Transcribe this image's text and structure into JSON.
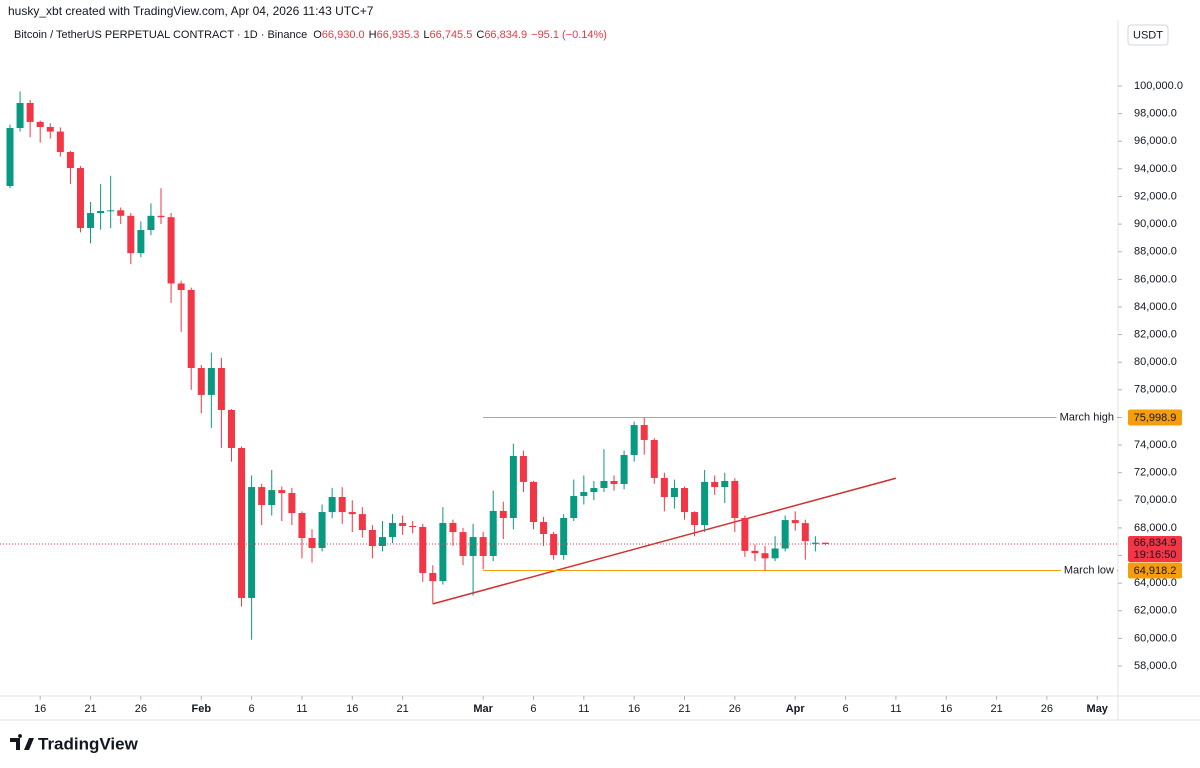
{
  "chart_data": {
    "type": "candlestick",
    "credit": "husky_xbt created with TradingView.com, Apr 04, 2026 11:43 UTC+7",
    "symbol": "Bitcoin / TetherUS PERPETUAL CONTRACT · 1D · Binance",
    "ohlc_legend": [
      {
        "key": "O",
        "value": "66,930.0"
      },
      {
        "key": "H",
        "value": "66,935.3"
      },
      {
        "key": "L",
        "value": "66,745.5"
      },
      {
        "key": "C",
        "value": "66,834.9"
      }
    ],
    "change": "−95.1 (−0.14%)",
    "currency": "USDT",
    "countdown": "19:16:50",
    "logo": "TradingView",
    "up_color": "#089981",
    "down_color": "#f23645",
    "dates": [
      "Jan 13",
      "Jan 14",
      "Jan 15",
      "Jan 16",
      "Jan 17",
      "Jan 18",
      "Jan 19",
      "Jan 20",
      "Jan 21",
      "Jan 22",
      "Jan 23",
      "Jan 24",
      "Jan 25",
      "Jan 26",
      "Jan 27",
      "Jan 28",
      "Jan 29",
      "Jan 30",
      "Jan 31",
      "Feb 1",
      "Feb 2",
      "Feb 3",
      "Feb 4",
      "Feb 5",
      "Feb 6",
      "Feb 7",
      "Feb 8",
      "Feb 9",
      "Feb 10",
      "Feb 11",
      "Feb 12",
      "Feb 13",
      "Feb 14",
      "Feb 15",
      "Feb 16",
      "Feb 17",
      "Feb 18",
      "Feb 19",
      "Feb 20",
      "Feb 21",
      "Feb 22",
      "Feb 23",
      "Feb 24",
      "Feb 25",
      "Feb 26",
      "Feb 27",
      "Feb 28",
      "Mar 1",
      "Mar 2",
      "Mar 3",
      "Mar 4",
      "Mar 5",
      "Mar 6",
      "Mar 7",
      "Mar 8",
      "Mar 9",
      "Mar 10",
      "Mar 11",
      "Mar 12",
      "Mar 13",
      "Mar 14",
      "Mar 15",
      "Mar 16",
      "Mar 17",
      "Mar 18",
      "Mar 19",
      "Mar 20",
      "Mar 21",
      "Mar 22",
      "Mar 23",
      "Mar 24",
      "Mar 25",
      "Mar 26",
      "Mar 27",
      "Mar 28",
      "Mar 29",
      "Mar 30",
      "Mar 31",
      "Apr 1",
      "Apr 2",
      "Apr 3",
      "Apr 4"
    ],
    "open": [
      92760,
      96960,
      98770,
      97400,
      97030,
      96700,
      95220,
      94060,
      89720,
      90800,
      90950,
      91000,
      90600,
      87900,
      89570,
      90600,
      90500,
      85700,
      85230,
      79580,
      77630,
      79580,
      76540,
      73790,
      62930,
      70960,
      69660,
      70740,
      70530,
      69080,
      67270,
      66550,
      69150,
      70240,
      69150,
      69000,
      67850,
      66690,
      67340,
      68360,
      68140,
      68070,
      64740,
      64150,
      68360,
      67700,
      65970,
      67340,
      65970,
      69230,
      68720,
      73210,
      71330,
      68430,
      67560,
      66040,
      68720,
      70310,
      70600,
      70890,
      71400,
      71180,
      73280,
      75450,
      74370,
      71620,
      70240,
      70890,
      69150,
      68210,
      71330,
      70960,
      71400,
      68720,
      66340,
      66170,
      65800,
      66510,
      68570,
      68350,
      66850,
      66930
    ],
    "high": [
      97200,
      99600,
      99000,
      97500,
      97300,
      97000,
      95300,
      94200,
      91600,
      92900,
      93500,
      91200,
      90800,
      90200,
      91500,
      92600,
      90800,
      85900,
      85400,
      79800,
      80700,
      80300,
      76600,
      73900,
      71800,
      71200,
      72200,
      71000,
      70900,
      69200,
      67900,
      69700,
      70900,
      70950,
      70000,
      69500,
      68200,
      68500,
      69000,
      68900,
      68500,
      68300,
      65300,
      69500,
      68600,
      68000,
      68300,
      67700,
      70700,
      69900,
      74100,
      73600,
      71400,
      68800,
      67700,
      69000,
      71500,
      71800,
      71400,
      73700,
      71800,
      73600,
      75700,
      76000,
      74500,
      72000,
      71500,
      71000,
      69200,
      72200,
      71800,
      72000,
      71600,
      68900,
      66800,
      66700,
      67400,
      68900,
      69200,
      68600,
      67400,
      66935.3
    ],
    "low": [
      92600,
      96700,
      96300,
      95900,
      96200,
      94900,
      92900,
      89400,
      88600,
      89600,
      89700,
      90000,
      87100,
      87600,
      89200,
      90000,
      84300,
      82200,
      78000,
      76300,
      75240,
      73800,
      72800,
      62300,
      59900,
      68200,
      68900,
      68500,
      68200,
      65800,
      65500,
      66300,
      68700,
      68300,
      67700,
      67300,
      65800,
      66300,
      66900,
      67500,
      67600,
      64100,
      62500,
      63900,
      66700,
      65300,
      63100,
      65000,
      65600,
      67200,
      67900,
      70600,
      67900,
      66700,
      65700,
      65700,
      68500,
      69700,
      70000,
      70600,
      70700,
      70800,
      72800,
      73300,
      71200,
      69200,
      69400,
      68600,
      67400,
      67700,
      70400,
      69800,
      67700,
      65900,
      65600,
      64900,
      65600,
      66300,
      67800,
      65700,
      66300,
      66745.5
    ],
    "close": [
      96960,
      98770,
      97400,
      97030,
      96700,
      95220,
      94060,
      89720,
      90800,
      90950,
      91000,
      90600,
      87900,
      89570,
      90600,
      90500,
      85700,
      85230,
      79580,
      77630,
      79580,
      76540,
      73790,
      62930,
      70960,
      69660,
      70740,
      70530,
      69080,
      67270,
      66550,
      69150,
      70240,
      69150,
      69000,
      67850,
      66690,
      67340,
      68360,
      68140,
      68070,
      64740,
      64150,
      68360,
      67700,
      65970,
      67340,
      65970,
      69230,
      68720,
      73210,
      71330,
      68430,
      67560,
      66040,
      68720,
      70310,
      70600,
      70890,
      71400,
      71180,
      73280,
      75450,
      74370,
      71620,
      70240,
      70890,
      69150,
      68210,
      71330,
      70960,
      71400,
      68720,
      66340,
      66170,
      65800,
      66510,
      68570,
      68350,
      67050,
      66930,
      66834.9
    ],
    "ylim": [
      55830,
      104780
    ],
    "yticks": [
      {
        "value": 58000,
        "label": "58,000.0"
      },
      {
        "value": 60000,
        "label": "60,000.0"
      },
      {
        "value": 62000,
        "label": "62,000.0"
      },
      {
        "value": 64000,
        "label": "64,000.0"
      },
      {
        "value": 66000,
        "label": "66,000.0"
      },
      {
        "value": 68000,
        "label": "68,000.0"
      },
      {
        "value": 70000,
        "label": "70,000.0"
      },
      {
        "value": 72000,
        "label": "72,000.0"
      },
      {
        "value": 74000,
        "label": "74,000.0"
      },
      {
        "value": 76000,
        "label": "76,000.0"
      },
      {
        "value": 78000,
        "label": "78,000.0"
      },
      {
        "value": 80000,
        "label": "80,000.0"
      },
      {
        "value": 82000,
        "label": "82,000.0"
      },
      {
        "value": 84000,
        "label": "84,000.0"
      },
      {
        "value": 86000,
        "label": "86,000.0"
      },
      {
        "value": 88000,
        "label": "88,000.0"
      },
      {
        "value": 90000,
        "label": "90,000.0"
      },
      {
        "value": 92000,
        "label": "92,000.0"
      },
      {
        "value": 94000,
        "label": "94,000.0"
      },
      {
        "value": 96000,
        "label": "96,000.0"
      },
      {
        "value": 98000,
        "label": "98,000.0"
      },
      {
        "value": 100000,
        "label": "100,000.0"
      }
    ],
    "xticks": [
      {
        "value": "Jan 16",
        "label": "16"
      },
      {
        "value": "Jan 21",
        "label": "21"
      },
      {
        "value": "Jan 26",
        "label": "26"
      },
      {
        "value": "Feb 1",
        "label": "Feb"
      },
      {
        "value": "Feb 6",
        "label": "6"
      },
      {
        "value": "Feb 11",
        "label": "11"
      },
      {
        "value": "Feb 16",
        "label": "16"
      },
      {
        "value": "Feb 21",
        "label": "21"
      },
      {
        "value": "Mar 1",
        "label": "Mar"
      },
      {
        "value": "Mar 6",
        "label": "6"
      },
      {
        "value": "Mar 11",
        "label": "11"
      },
      {
        "value": "Mar 16",
        "label": "16"
      },
      {
        "value": "Mar 21",
        "label": "21"
      },
      {
        "value": "Mar 26",
        "label": "26"
      },
      {
        "value": "Apr 1",
        "label": "Apr"
      },
      {
        "value": "Apr 6",
        "label": "6"
      },
      {
        "value": "Apr 11",
        "label": "11"
      },
      {
        "value": "Apr 16",
        "label": "16"
      },
      {
        "value": "Apr 21",
        "label": "21"
      },
      {
        "value": "Apr 26",
        "label": "26"
      },
      {
        "value": "May 1",
        "label": "May"
      }
    ],
    "levels": [
      {
        "label": "March high",
        "value": 75998.9,
        "value_label": "75,998.9",
        "start": "Mar 1",
        "color": "#f59d0b"
      },
      {
        "label": "March low",
        "value": 64918.2,
        "value_label": "64,918.2",
        "start": "Mar 1",
        "color": "#f59d0b"
      }
    ],
    "trendline": {
      "start": "Feb 24",
      "end": "Apr 11",
      "start_value": 62500,
      "end_value": 71600,
      "color": "#d32f2f"
    }
  }
}
